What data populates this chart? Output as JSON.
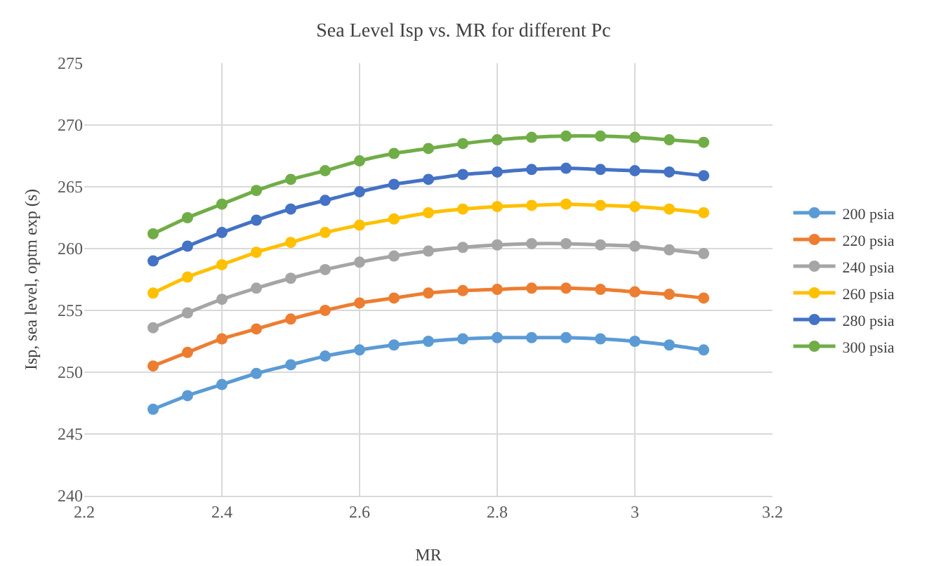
{
  "chart_data": {
    "type": "line",
    "title": "Sea Level Isp vs. MR for different Pc",
    "xlabel": "MR",
    "ylabel": "Isp, sea level, optm exp (s)",
    "x": [
      2.3,
      2.35,
      2.4,
      2.45,
      2.5,
      2.55,
      2.6,
      2.65,
      2.7,
      2.75,
      2.8,
      2.85,
      2.9,
      2.95,
      3.0,
      3.05,
      3.1
    ],
    "series": [
      {
        "name": "200 psia",
        "color": "#5b9bd5",
        "values": [
          247.0,
          248.1,
          249.0,
          249.9,
          250.6,
          251.3,
          251.8,
          252.2,
          252.5,
          252.7,
          252.8,
          252.8,
          252.8,
          252.7,
          252.5,
          252.2,
          251.8
        ]
      },
      {
        "name": "220 psia",
        "color": "#ed7d31",
        "values": [
          250.5,
          251.6,
          252.7,
          253.5,
          254.3,
          255.0,
          255.6,
          256.0,
          256.4,
          256.6,
          256.7,
          256.8,
          256.8,
          256.7,
          256.5,
          256.3,
          256.0
        ]
      },
      {
        "name": "240 psia",
        "color": "#a5a5a5",
        "values": [
          253.6,
          254.8,
          255.9,
          256.8,
          257.6,
          258.3,
          258.9,
          259.4,
          259.8,
          260.1,
          260.3,
          260.4,
          260.4,
          260.3,
          260.2,
          259.9,
          259.6
        ]
      },
      {
        "name": "260 psia",
        "color": "#ffc000",
        "values": [
          256.4,
          257.7,
          258.7,
          259.7,
          260.5,
          261.3,
          261.9,
          262.4,
          262.9,
          263.2,
          263.4,
          263.5,
          263.6,
          263.5,
          263.4,
          263.2,
          262.9
        ]
      },
      {
        "name": "280 psia",
        "color": "#4472c4",
        "values": [
          259.0,
          260.2,
          261.3,
          262.3,
          263.2,
          263.9,
          264.6,
          265.2,
          265.6,
          266.0,
          266.2,
          266.4,
          266.5,
          266.4,
          266.3,
          266.2,
          265.9
        ]
      },
      {
        "name": "300 psia",
        "color": "#70ad47",
        "values": [
          261.2,
          262.5,
          263.6,
          264.7,
          265.6,
          266.3,
          267.1,
          267.7,
          268.1,
          268.5,
          268.8,
          269.0,
          269.1,
          269.1,
          269.0,
          268.8,
          268.6
        ]
      }
    ],
    "xlim": [
      2.2,
      3.2
    ],
    "xticks": [
      2.2,
      2.4,
      2.6,
      2.8,
      3,
      3.2
    ],
    "ylim": [
      240,
      275
    ],
    "yticks": [
      240,
      245,
      250,
      255,
      260,
      265,
      270,
      275
    ],
    "grid": true,
    "legend": "right",
    "marker": "circle",
    "line_style": "solid"
  }
}
